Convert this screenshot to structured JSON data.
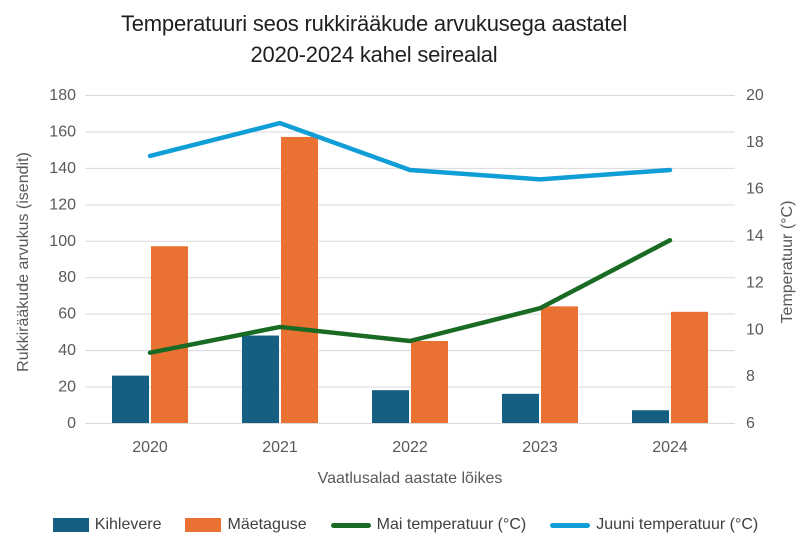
{
  "title": {
    "line1": "Temperatuuri seos rukkirääkude arvukusega aastatel",
    "line2": "2020-2024 kahel seirealal"
  },
  "chart_data": {
    "type": "combo-bar-line",
    "categories": [
      "2020",
      "2021",
      "2022",
      "2023",
      "2024"
    ],
    "bar_series": [
      {
        "name": "Kihlevere",
        "color": "#156082",
        "axis": "left",
        "values": [
          26,
          48,
          18,
          16,
          7
        ]
      },
      {
        "name": "Mäetaguse",
        "color": "#E97132",
        "axis": "left",
        "values": [
          97,
          157,
          45,
          64,
          61
        ]
      }
    ],
    "line_series": [
      {
        "name": "Mai temperatuur (°C)",
        "color": "#196B24",
        "axis": "right",
        "values": [
          9.0,
          10.1,
          9.5,
          10.9,
          13.8
        ]
      },
      {
        "name": "Juuni temperatuur (°C)",
        "color": "#0F9ED5",
        "axis": "right",
        "values": [
          17.4,
          18.8,
          16.8,
          16.4,
          16.8
        ]
      }
    ],
    "left_axis": {
      "label": "Rukkirääkude arvukus (isendit)",
      "min": 0,
      "max": 180,
      "step": 20
    },
    "right_axis": {
      "label": "Temperatuur (°C)",
      "min": 6,
      "max": 20,
      "step": 2
    },
    "x_axis": {
      "label": "Vaatlusalad aastate lõikes"
    },
    "grid": true,
    "legend_position": "bottom"
  },
  "legend": {
    "items": [
      {
        "label": "Kihlevere",
        "swatch": "rect",
        "color": "#156082"
      },
      {
        "label": "Mäetaguse",
        "swatch": "rect",
        "color": "#E97132"
      },
      {
        "label": "Mai temperatuur (°C)",
        "swatch": "line",
        "color": "#196B24"
      },
      {
        "label": "Juuni temperatuur (°C)",
        "swatch": "line",
        "color": "#0F9ED5"
      }
    ]
  },
  "colors": {
    "grid": "#D9D9D9",
    "tick_text": "#595959",
    "axis_title_text": "#595959",
    "title_text": "#1f1f1f",
    "legend_text": "#404040",
    "background": "#FFFFFF"
  }
}
